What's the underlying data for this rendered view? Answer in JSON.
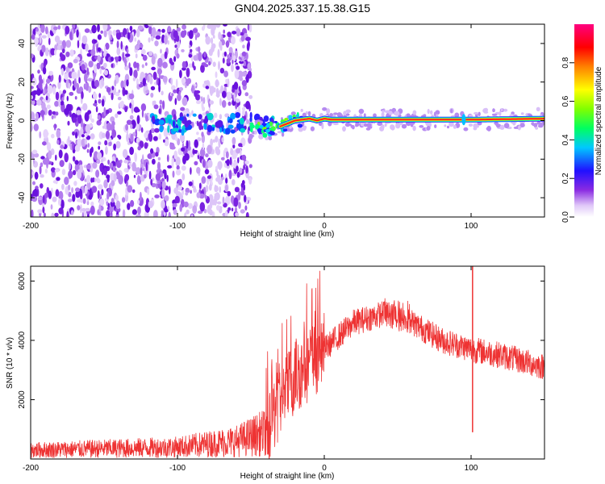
{
  "title": "GN04.2025.337.15.38.G15",
  "chart_data": [
    {
      "type": "heatmap",
      "name": "spectrogram",
      "xlabel": "Height of straight line (km)",
      "ylabel": "Frequency (Hz)",
      "xlim": [
        -200,
        150
      ],
      "ylim": [
        -50,
        50
      ],
      "xticks": [
        -200,
        -100,
        0,
        100
      ],
      "xtick_labels": [
        "-200",
        "-100",
        "0",
        "100"
      ],
      "yticks": [
        -40,
        -20,
        0,
        20,
        40
      ],
      "ytick_labels": [
        "-40",
        "-20",
        "0",
        "20",
        "40"
      ],
      "noise_region_x": [
        -200,
        -50
      ],
      "transition_x": [
        -50,
        -30
      ],
      "signal_track": [
        {
          "x": -50,
          "y": -4
        },
        {
          "x": -40,
          "y": -5
        },
        {
          "x": -30,
          "y": -3
        },
        {
          "x": -20,
          "y": 0
        },
        {
          "x": -10,
          "y": 1
        },
        {
          "x": -5,
          "y": 0
        },
        {
          "x": 0,
          "y": 1
        },
        {
          "x": 5,
          "y": 0.5
        },
        {
          "x": 50,
          "y": 0.5
        },
        {
          "x": 100,
          "y": 0.5
        },
        {
          "x": 150,
          "y": 1
        }
      ],
      "colorbar": {
        "label": "Normalized spectral amplitude",
        "ticks": [
          0.0,
          0.2,
          0.4,
          0.6,
          0.8
        ],
        "tick_labels": [
          "0.0",
          "0.2",
          "0.4",
          "0.6",
          "0.8"
        ],
        "range": [
          0,
          1
        ]
      }
    },
    {
      "type": "line",
      "name": "snr",
      "xlabel": "Height of straight line (km)",
      "ylabel": "SNR (10 * v/v)",
      "xlim": [
        -200,
        150
      ],
      "ylim": [
        0,
        6500
      ],
      "xticks": [
        -200,
        -100,
        0,
        100
      ],
      "xtick_labels": [
        "-200",
        "-100",
        "0",
        "100"
      ],
      "yticks": [
        2000,
        4000,
        6000
      ],
      "ytick_labels": [
        "2000",
        "4000",
        "6000"
      ],
      "color": "#ee3333",
      "envelope": [
        {
          "x": -200,
          "y": 300
        },
        {
          "x": -150,
          "y": 350
        },
        {
          "x": -100,
          "y": 400
        },
        {
          "x": -60,
          "y": 600
        },
        {
          "x": -40,
          "y": 900
        },
        {
          "x": -35,
          "y": 1500
        },
        {
          "x": -20,
          "y": 2800
        },
        {
          "x": 0,
          "y": 3700
        },
        {
          "x": 20,
          "y": 4600
        },
        {
          "x": 40,
          "y": 4900
        },
        {
          "x": 60,
          "y": 4600
        },
        {
          "x": 80,
          "y": 4000
        },
        {
          "x": 100,
          "y": 3700
        },
        {
          "x": 120,
          "y": 3500
        },
        {
          "x": 150,
          "y": 3100
        }
      ],
      "spike": {
        "x": 101,
        "y_min": 900,
        "y_max": 6500
      }
    }
  ]
}
